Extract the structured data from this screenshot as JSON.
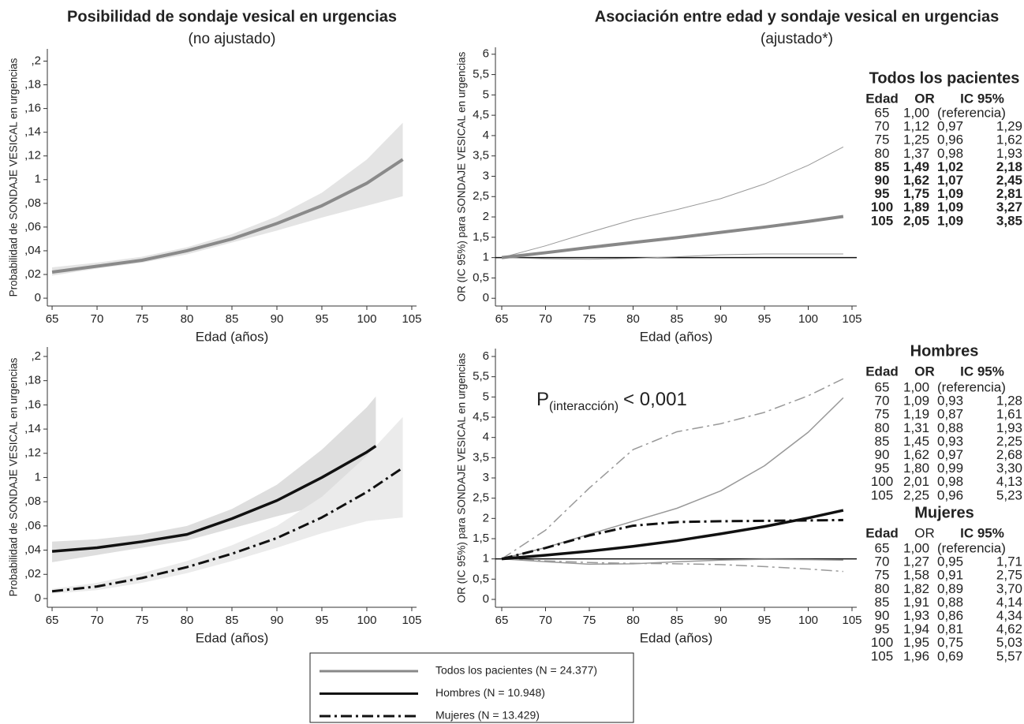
{
  "chart_data": [
    {
      "type": "line",
      "title": "Posibilidad de sondaje vesical en urgencias",
      "subtitle": "(no ajustado)",
      "xlabel": "Edad (años)",
      "ylabel": "Probabilidad de SONDAJE VESICAL en urgencias",
      "xlim": [
        64.47,
        105.53
      ],
      "ylim": [
        -0.0066,
        0.2103
      ],
      "xticks": [
        65,
        70,
        75,
        80,
        85,
        90,
        95,
        100,
        105
      ],
      "yticks": [
        0,
        {
          "value": 0.02,
          "label": ",02"
        },
        {
          "value": 0.04,
          "label": ",04"
        },
        {
          "value": 0.06,
          "label": ",06"
        },
        {
          "value": 0.08,
          "label": ",08"
        },
        {
          "value": 0.1,
          "label": "1"
        },
        {
          "value": 0.12,
          "label": ",12"
        },
        {
          "value": 0.14,
          "label": ",14"
        },
        {
          "value": 0.16,
          "label": ",16"
        },
        {
          "value": 0.18,
          "label": ",18"
        },
        {
          "value": 0.2,
          "label": ",2"
        }
      ],
      "x": [
        65,
        70,
        75,
        80,
        85,
        90,
        95,
        100,
        104
      ],
      "series": [
        {
          "color": "#8a8a8a",
          "width": 4,
          "dash": "solid",
          "values": [
            0.022,
            0.027,
            0.032,
            0.04,
            0.05,
            0.063,
            0.078,
            0.097,
            0.117
          ],
          "band": {
            "color": "#e4e4e4",
            "lower": [
              0.019,
              0.025,
              0.03,
              0.037,
              0.047,
              0.057,
              0.068,
              0.078,
              0.086
            ],
            "upper": [
              0.026,
              0.03,
              0.035,
              0.043,
              0.054,
              0.069,
              0.089,
              0.117,
              0.148
            ]
          }
        }
      ]
    },
    {
      "type": "line",
      "title": "Asociación entre edad y sondaje vesical en urgencias",
      "subtitle": "(ajustado*)",
      "xlabel": "Edad (años)",
      "ylabel": "OR (IC 95%) para SONDAJE VESICAL en urgencias",
      "xlim": [
        64.28,
        105.54
      ],
      "ylim": [
        -0.19,
        6.17
      ],
      "xticks": [
        65,
        70,
        75,
        80,
        85,
        90,
        95,
        100,
        105
      ],
      "yticks": [
        0,
        {
          "value": 0.5,
          "label": "0,5"
        },
        1,
        {
          "value": 1.5,
          "label": "1,5"
        },
        2,
        {
          "value": 2.5,
          "label": "2,5"
        },
        3,
        {
          "value": 3.5,
          "label": "3,5"
        },
        4,
        {
          "value": 4.5,
          "label": "4,5"
        },
        5,
        {
          "value": 5.5,
          "label": "5,5"
        },
        6
      ],
      "reference_line": 1,
      "x": [
        65,
        70,
        75,
        80,
        85,
        90,
        95,
        100,
        104
      ],
      "series": [
        {
          "color": "#999999",
          "width": 1,
          "dash": "solid",
          "values": [
            1,
            1.29,
            1.62,
            1.93,
            2.18,
            2.45,
            2.81,
            3.27,
            3.72
          ]
        },
        {
          "color": "#999999",
          "width": 1,
          "dash": "solid",
          "values": [
            1,
            0.97,
            0.96,
            0.98,
            1.02,
            1.07,
            1.09,
            1.09,
            1.09
          ]
        },
        {
          "color": "#888888",
          "width": 4,
          "dash": "solid",
          "values": [
            1,
            1.12,
            1.25,
            1.37,
            1.49,
            1.62,
            1.75,
            1.89,
            2.01
          ]
        }
      ]
    },
    {
      "type": "line",
      "xlabel": "Edad (años)",
      "ylabel": "Probabilidad de SONDAJE VESICAL en urgencias",
      "xlim": [
        64.47,
        105.53
      ],
      "ylim": [
        -0.0072,
        0.2078
      ],
      "xticks": [
        65,
        70,
        75,
        80,
        85,
        90,
        95,
        100,
        105
      ],
      "yticks": [
        0,
        {
          "value": 0.02,
          "label": ",02"
        },
        {
          "value": 0.04,
          "label": ",04"
        },
        {
          "value": 0.06,
          "label": ",06"
        },
        {
          "value": 0.08,
          "label": ",08"
        },
        {
          "value": 0.1,
          "label": "1"
        },
        {
          "value": 0.12,
          "label": ",12"
        },
        {
          "value": 0.14,
          "label": ",14"
        },
        {
          "value": 0.16,
          "label": ",16"
        },
        {
          "value": 0.18,
          "label": ",18"
        },
        {
          "value": 0.2,
          "label": ",2"
        }
      ],
      "x": [
        65,
        70,
        75,
        80,
        85,
        90,
        95,
        100,
        104
      ],
      "series": [
        {
          "color": "#111111",
          "width": 3.5,
          "dash": "solid",
          "x": [
            65,
            70,
            75,
            80,
            85,
            90,
            95,
            100,
            101
          ],
          "values": [
            0.039,
            0.042,
            0.047,
            0.053,
            0.066,
            0.081,
            0.1,
            0.121,
            0.126
          ],
          "band": {
            "color": "#dedede",
            "lower": [
              0.03,
              0.036,
              0.042,
              0.048,
              0.058,
              0.068,
              0.077,
              0.086,
              0.087
            ],
            "upper": [
              0.047,
              0.049,
              0.053,
              0.06,
              0.074,
              0.094,
              0.123,
              0.158,
              0.167
            ]
          }
        },
        {
          "color": "#111111",
          "width": 3,
          "dash": "dashdot",
          "values": [
            0.006,
            0.01,
            0.017,
            0.026,
            0.037,
            0.05,
            0.067,
            0.088,
            0.108
          ],
          "band": {
            "color": "#ebebeb",
            "lower": [
              0.004,
              0.007,
              0.013,
              0.021,
              0.031,
              0.042,
              0.054,
              0.064,
              0.067
            ],
            "upper": [
              0.008,
              0.013,
              0.021,
              0.031,
              0.044,
              0.06,
              0.084,
              0.118,
              0.15
            ]
          }
        }
      ]
    },
    {
      "type": "line",
      "xlabel": "Edad (años)",
      "ylabel": "OR (IC 95%) para SONDAJE VESICAL en urgencias",
      "xlim": [
        64.28,
        105.54
      ],
      "ylim": [
        -0.195,
        6.195
      ],
      "xticks": [
        65,
        70,
        75,
        80,
        85,
        90,
        95,
        100,
        105
      ],
      "yticks": [
        0,
        {
          "value": 0.5,
          "label": "0,5"
        },
        1,
        {
          "value": 1.5,
          "label": "1,5"
        },
        2,
        {
          "value": 2.5,
          "label": "2,5"
        },
        3,
        {
          "value": 3.5,
          "label": "3,5"
        },
        4,
        {
          "value": 4.5,
          "label": "4,5"
        },
        5,
        {
          "value": 5.5,
          "label": "5,5"
        },
        6
      ],
      "reference_line": 1,
      "annotation": {
        "main": "P",
        "sub": "(interacción)",
        "rest": "< 0,001"
      },
      "x": [
        65,
        70,
        75,
        80,
        85,
        90,
        95,
        100,
        104
      ],
      "series": [
        {
          "color": "#999999",
          "width": 1.5,
          "dash": "solid",
          "values": [
            1,
            1.28,
            1.61,
            1.93,
            2.25,
            2.68,
            3.3,
            4.13,
            4.98
          ]
        },
        {
          "color": "#999999",
          "width": 1.5,
          "dash": "solid",
          "values": [
            1,
            0.93,
            0.87,
            0.88,
            0.93,
            0.97,
            0.99,
            0.98,
            0.97
          ]
        },
        {
          "color": "#999999",
          "width": 1.5,
          "dash": "dashdot",
          "values": [
            1,
            1.71,
            2.75,
            3.7,
            4.14,
            4.34,
            4.62,
            5.03,
            5.45
          ]
        },
        {
          "color": "#999999",
          "width": 1.5,
          "dash": "dashdot",
          "values": [
            1,
            0.95,
            0.91,
            0.89,
            0.88,
            0.86,
            0.81,
            0.75,
            0.69
          ]
        },
        {
          "color": "#111111",
          "width": 3.5,
          "dash": "solid",
          "values": [
            1,
            1.09,
            1.19,
            1.31,
            1.45,
            1.62,
            1.8,
            2.01,
            2.2
          ]
        },
        {
          "color": "#111111",
          "width": 3,
          "dash": "dashdot",
          "values": [
            1,
            1.27,
            1.58,
            1.82,
            1.91,
            1.93,
            1.94,
            1.95,
            1.96
          ]
        }
      ]
    }
  ],
  "legend": [
    {
      "label": "Todos los pacientes (N = 24.377)",
      "color": "#888888",
      "dash": "solid"
    },
    {
      "label": "Hombres (N = 10.948)",
      "color": "#111111",
      "dash": "solid"
    },
    {
      "label": "Mujeres (N = 13.429)",
      "color": "#111111",
      "dash": "dashdot"
    }
  ],
  "tables": [
    {
      "title": "Todos los pacientes",
      "header": [
        "Edad",
        "OR",
        "IC 95%"
      ],
      "rows": [
        [
          "65",
          "1,00",
          "(referencia)"
        ],
        [
          "70",
          "1,12",
          "0,97",
          "1,29"
        ],
        [
          "75",
          "1,25",
          "0,96",
          "1,62"
        ],
        [
          "80",
          "1,37",
          "0,98",
          "1,93"
        ],
        [
          "85",
          "1,49",
          "1,02",
          "2,18"
        ],
        [
          "90",
          "1,62",
          "1,07",
          "2,45"
        ],
        [
          "95",
          "1,75",
          "1,09",
          "2,81"
        ],
        [
          "100",
          "1,89",
          "1,09",
          "3,27"
        ],
        [
          "105",
          "2,05",
          "1,09",
          "3,85"
        ]
      ]
    },
    {
      "title": "Hombres",
      "header": [
        "Edad",
        "OR",
        "IC 95%"
      ],
      "rows": [
        [
          "65",
          "1,00",
          "(referencia)"
        ],
        [
          "70",
          "1,09",
          "0,93",
          "1,28"
        ],
        [
          "75",
          "1,19",
          "0,87",
          "1,61"
        ],
        [
          "80",
          "1,31",
          "0,88",
          "1,93"
        ],
        [
          "85",
          "1,45",
          "0,93",
          "2,25"
        ],
        [
          "90",
          "1,62",
          "0,97",
          "2,68"
        ],
        [
          "95",
          "1,80",
          "0,99",
          "3,30"
        ],
        [
          "100",
          "2,01",
          "0,98",
          "4,13"
        ],
        [
          "105",
          "2,25",
          "0,96",
          "5,23"
        ]
      ]
    },
    {
      "title": "Mujeres",
      "header": [
        "Edad",
        "OR",
        "IC 95%"
      ],
      "rows": [
        [
          "65",
          "1,00",
          "(referencia)"
        ],
        [
          "70",
          "1,27",
          "0,95",
          "1,71"
        ],
        [
          "75",
          "1,58",
          "0,91",
          "2,75"
        ],
        [
          "80",
          "1,82",
          "0,89",
          "3,70"
        ],
        [
          "85",
          "1,91",
          "0,88",
          "4,14"
        ],
        [
          "90",
          "1,93",
          "0,86",
          "4,34"
        ],
        [
          "95",
          "1,94",
          "0,81",
          "4,62"
        ],
        [
          "100",
          "1,95",
          "0,75",
          "5,03"
        ],
        [
          "105",
          "1,96",
          "0,69",
          "5,57"
        ]
      ]
    }
  ]
}
